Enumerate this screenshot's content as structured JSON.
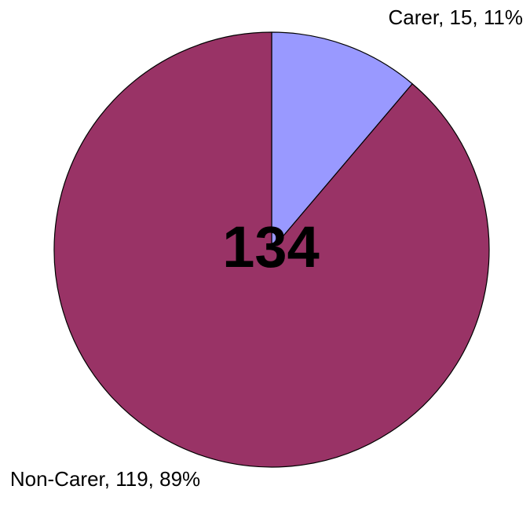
{
  "chart_data": {
    "type": "pie",
    "title": "",
    "center_label": "134",
    "slices": [
      {
        "category": "Carer",
        "value": 15,
        "percent": 11,
        "label": "Carer, 15, 11%",
        "color": "#9999ff"
      },
      {
        "category": "Non-Carer",
        "value": 119,
        "percent": 89,
        "label": "Non-Carer, 119, 89%",
        "color": "#993366"
      }
    ],
    "legend": "none"
  }
}
